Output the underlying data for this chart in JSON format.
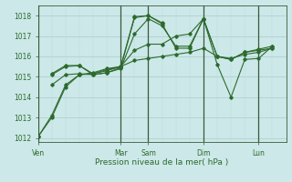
{
  "background_color": "#cce8e8",
  "grid_color_major": "#aacccc",
  "grid_color_minor": "#bbdddd",
  "line_color": "#2d6a2d",
  "sep_color": "#3a5a3a",
  "xlabel": "Pression niveau de la mer( hPa )",
  "ylim": [
    1011.8,
    1018.5
  ],
  "yticks": [
    1012,
    1013,
    1014,
    1015,
    1016,
    1017,
    1018
  ],
  "xlim": [
    0,
    108
  ],
  "day_labels": [
    "Ven",
    "Mar",
    "Sam",
    "Dim",
    "Lun"
  ],
  "day_positions": [
    0,
    36,
    48,
    72,
    96
  ],
  "series": [
    {
      "x": [
        0,
        6,
        12,
        18,
        24,
        30,
        36,
        42,
        48,
        54,
        60,
        66,
        72,
        78,
        84,
        90,
        96,
        102
      ],
      "y": [
        1012.05,
        1013.0,
        1014.5,
        1015.1,
        1015.2,
        1015.4,
        1015.5,
        1015.8,
        1015.9,
        1016.0,
        1016.1,
        1016.2,
        1016.4,
        1016.0,
        1015.9,
        1016.1,
        1016.2,
        1016.4
      ]
    },
    {
      "x": [
        0,
        6,
        12,
        18,
        24,
        30,
        36,
        42,
        48,
        54,
        60,
        66,
        72,
        78,
        84,
        90,
        96,
        102
      ],
      "y": [
        1012.05,
        1013.1,
        1014.6,
        1015.1,
        1015.15,
        1015.35,
        1015.5,
        1016.3,
        1016.6,
        1016.6,
        1017.0,
        1017.1,
        1017.85,
        1016.0,
        1015.85,
        1016.2,
        1016.3,
        1016.4
      ]
    },
    {
      "x": [
        6,
        12,
        18,
        24,
        30,
        36,
        42,
        48,
        54,
        60,
        66,
        72,
        78,
        84,
        90,
        96,
        102
      ],
      "y": [
        1014.6,
        1015.1,
        1015.15,
        1015.1,
        1015.2,
        1015.4,
        1017.1,
        1017.85,
        1017.5,
        1016.5,
        1016.5,
        1017.85,
        1016.0,
        1015.85,
        1016.2,
        1016.35,
        1016.5
      ]
    },
    {
      "x": [
        6,
        12,
        18,
        24,
        30,
        36,
        42,
        48,
        54,
        60,
        66,
        72,
        78,
        84,
        90,
        96,
        102
      ],
      "y": [
        1015.1,
        1015.5,
        1015.55,
        1015.1,
        1015.2,
        1015.45,
        1017.9,
        1018.0,
        1017.6,
        1016.4,
        1016.4,
        1017.85,
        1015.6,
        1014.0,
        1015.85,
        1015.9,
        1016.5
      ]
    },
    {
      "x": [
        6,
        12,
        18,
        24,
        30,
        36,
        42,
        48,
        54
      ],
      "y": [
        1015.15,
        1015.55,
        1015.55,
        1015.15,
        1015.3,
        1015.5,
        1017.95,
        1018.0,
        1017.65
      ]
    }
  ]
}
